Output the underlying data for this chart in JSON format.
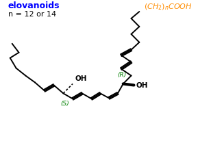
{
  "title": "elovanoids",
  "title_color": "#0000FF",
  "n_label": "n = 12 or 14",
  "n_label_color": "#000000",
  "R_label": "(R)",
  "S_label": "(S)",
  "stereo_color": "#008000",
  "OH_color": "#000000",
  "formula_color": "#FF8C00",
  "line_color": "#000000",
  "bg_color": "#FFFFFF",
  "figsize": [
    2.89,
    2.07
  ],
  "dpi": 100
}
